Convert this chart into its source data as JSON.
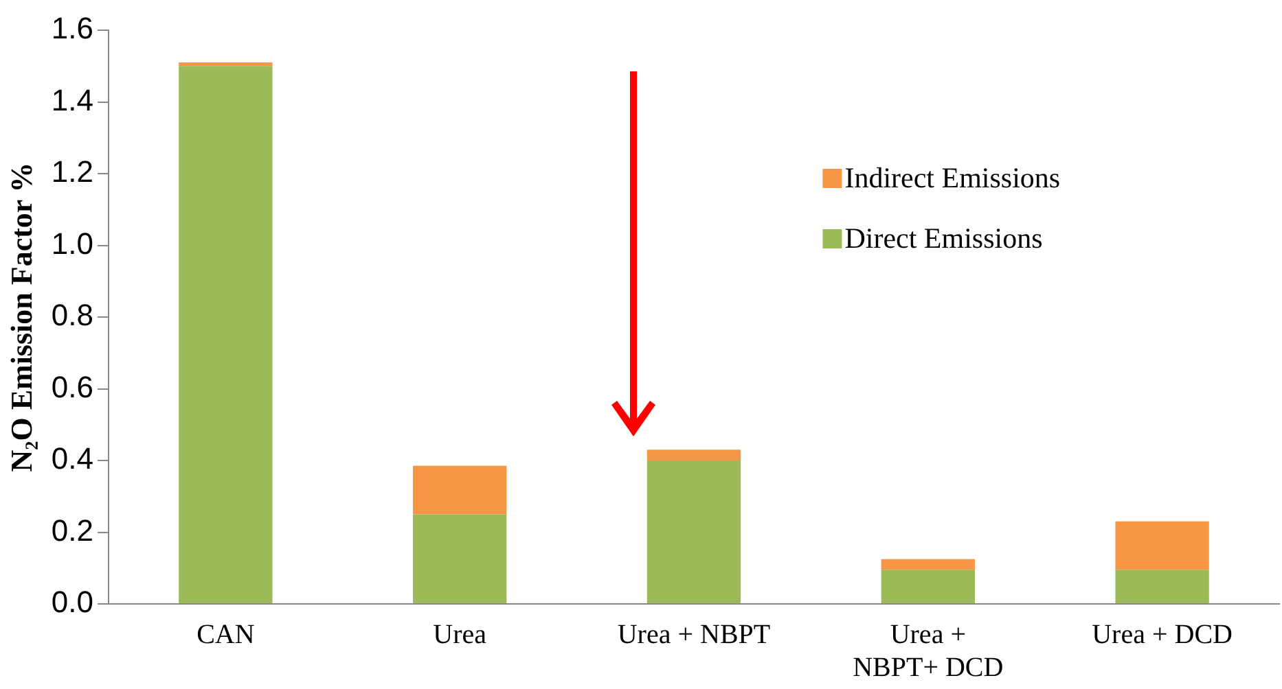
{
  "chart_data": {
    "type": "bar",
    "stacked": true,
    "ylabel": "N₂O Emission Factor %",
    "categories": [
      "CAN",
      "Urea",
      "Urea + NBPT",
      "Urea + NBPT+ DCD",
      "Urea + DCD"
    ],
    "series": [
      {
        "name": "Direct Emissions",
        "color": "#9bbb59",
        "values": [
          1.5,
          0.25,
          0.4,
          0.095,
          0.095
        ]
      },
      {
        "name": "Indirect Emissions",
        "color": "#f79646",
        "values": [
          0.01,
          0.135,
          0.03,
          0.03,
          0.135
        ]
      }
    ],
    "ylim": [
      0,
      1.6
    ],
    "yticks": [
      {
        "value": 0,
        "label": "0.0"
      },
      {
        "value": 0.2,
        "label": "0.2"
      },
      {
        "value": 0.4,
        "label": "0.4"
      },
      {
        "value": 0.6,
        "label": "0.6"
      },
      {
        "value": 0.8,
        "label": "0.8"
      },
      {
        "value": 1.0,
        "label": "1.0"
      },
      {
        "value": 1.2,
        "label": "1.2"
      },
      {
        "value": 1.4,
        "label": "1.4"
      },
      {
        "value": 1.6,
        "label": "1.6"
      }
    ],
    "grid": false,
    "legend": "top right"
  }
}
